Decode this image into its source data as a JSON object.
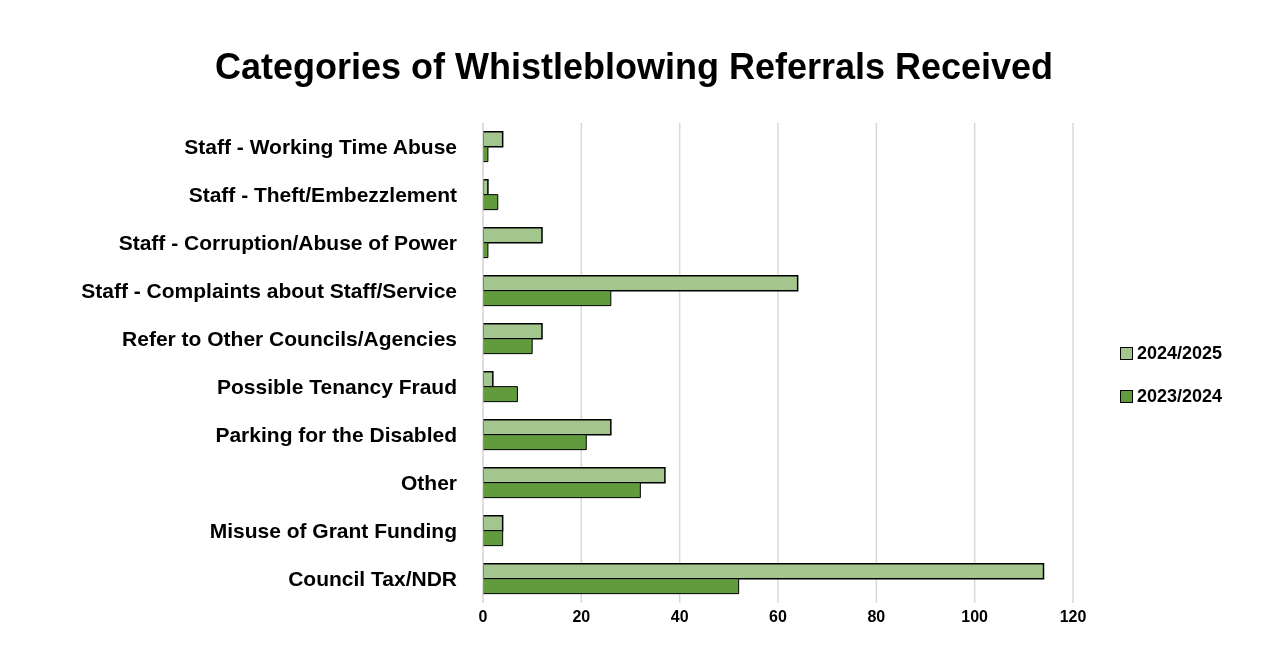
{
  "chart_data": {
    "type": "bar",
    "orientation": "horizontal",
    "title": "Categories of Whistleblowing Referrals Received",
    "categories": [
      "Staff - Working Time Abuse",
      "Staff - Theft/Embezzlement",
      "Staff - Corruption/Abuse of Power",
      "Staff - Complaints about Staff/Service",
      "Refer to Other Councils/Agencies",
      "Possible Tenancy Fraud",
      "Parking for the Disabled",
      "Other",
      "Misuse of Grant Funding",
      "Council Tax/NDR"
    ],
    "series": [
      {
        "name": "2024/2025",
        "color": "#a3c68f",
        "values": [
          4,
          1,
          12,
          64,
          12,
          2,
          26,
          37,
          4,
          114
        ]
      },
      {
        "name": "2023/2024",
        "color": "#629a3e",
        "values": [
          1,
          3,
          1,
          26,
          10,
          7,
          21,
          32,
          4,
          52
        ]
      }
    ],
    "xlim": [
      0,
      120
    ],
    "xticks": [
      0,
      20,
      40,
      60,
      80,
      100,
      120
    ],
    "grid": "x",
    "legend": "right"
  }
}
